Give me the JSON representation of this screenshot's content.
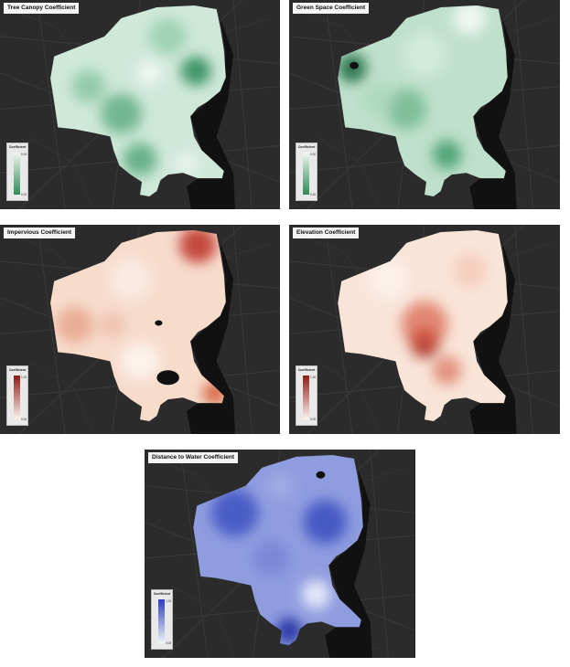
{
  "legend_title": "Coefficient",
  "panels": [
    {
      "title": "Tree Canopy Coefficient",
      "min": "0.00",
      "max": "0.00",
      "color": "#2e8b57",
      "light": "#f4faf6"
    },
    {
      "title": "Green Space Coefficient",
      "min": "0.00",
      "max": "0.00",
      "color": "#2e8b57",
      "light": "#f4faf6"
    },
    {
      "title": "Impervious Coefficient",
      "min": "0.00",
      "max": "1.00",
      "color": "#a3201c",
      "light": "#fbf3ee"
    },
    {
      "title": "Elevation Coefficient",
      "min": "0.00",
      "max": "1.00",
      "color": "#a3201c",
      "light": "#fbf3ee"
    },
    {
      "title": "Distance to Water Coefficient",
      "min": "0.00",
      "max": "1.00",
      "color": "#2c3fb8",
      "light": "#f1f3fb"
    }
  ]
}
